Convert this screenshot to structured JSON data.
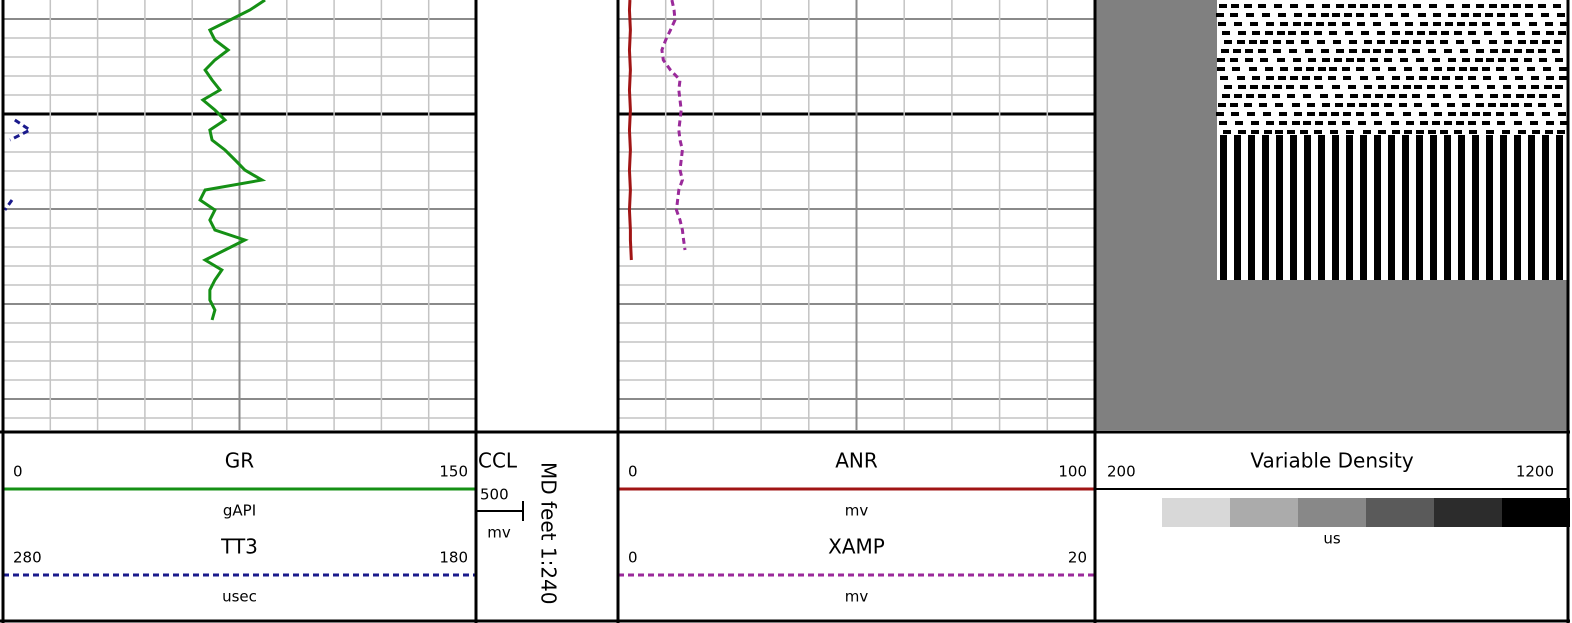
{
  "tracks": [
    {
      "curves": [
        {
          "name": "GR",
          "unit": "gAPI",
          "xlim": [
            0,
            150
          ],
          "color": "#159015",
          "dashed": false,
          "values": [
            83.1,
            78.3,
            72.0,
            65.6,
            67.2,
            71.4,
            67.2,
            64.1,
            66.3,
            68.8,
            63.4,
            67.2,
            70.4,
            65.6,
            66.3,
            70.4,
            73.6,
            76.7,
            82.1,
            64.1,
            62.5,
            67.2,
            65.6,
            67.2,
            76.7,
            70.4,
            64.1,
            69.4,
            67.2,
            65.6,
            65.6,
            67.2,
            66.3
          ]
        },
        {
          "name": "TT3",
          "unit": "usec",
          "xlim": [
            280,
            180
          ],
          "color": "#1a1a8c",
          "dashed": true,
          "values": [
            null,
            null,
            null,
            null,
            null,
            null,
            null,
            null,
            null,
            null,
            null,
            null,
            277.5,
            274.3,
            278.5,
            null,
            null,
            null,
            null,
            null,
            278.1,
            279.6,
            null
          ]
        }
      ]
    },
    {
      "ccl": {
        "name": "CCL",
        "scale": 500,
        "unit": "mv"
      },
      "depth_label": "MD feet 1:240"
    },
    {
      "curves": [
        {
          "name": "ANR",
          "unit": "mv",
          "xlim": [
            0,
            100
          ],
          "color": "#a01414",
          "dashed": false,
          "values": [
            2.5,
            2.4,
            2.5,
            2.6,
            2.5,
            2.4,
            2.5,
            2.6,
            2.5,
            2.4,
            2.5,
            2.6,
            2.5,
            2.4,
            2.5,
            2.6,
            2.5,
            2.4,
            2.5,
            2.6,
            2.5,
            2.4,
            2.5,
            2.6,
            2.6,
            2.7,
            2.8
          ]
        },
        {
          "name": "XAMP",
          "unit": "mv",
          "xlim": [
            0,
            20
          ],
          "color": "#9a2a9a",
          "dashed": true,
          "values": [
            2.26,
            2.35,
            2.39,
            2.2,
            2.0,
            1.84,
            1.9,
            2.2,
            2.6,
            2.55,
            2.6,
            2.65,
            2.6,
            2.55,
            2.6,
            2.7,
            2.65,
            2.6,
            2.7,
            2.55,
            2.5,
            2.45,
            2.6,
            2.7,
            2.75,
            2.81
          ]
        }
      ]
    },
    {
      "vdl": {
        "name": "Variable Density",
        "unit": "us",
        "xlim": [
          200,
          1200
        ],
        "colors": [
          "#d8d8d8",
          "#ababab",
          "#888888",
          "#5a5a5a",
          "#2c2c2c",
          "#000000"
        ],
        "background": "#808080"
      }
    }
  ]
}
